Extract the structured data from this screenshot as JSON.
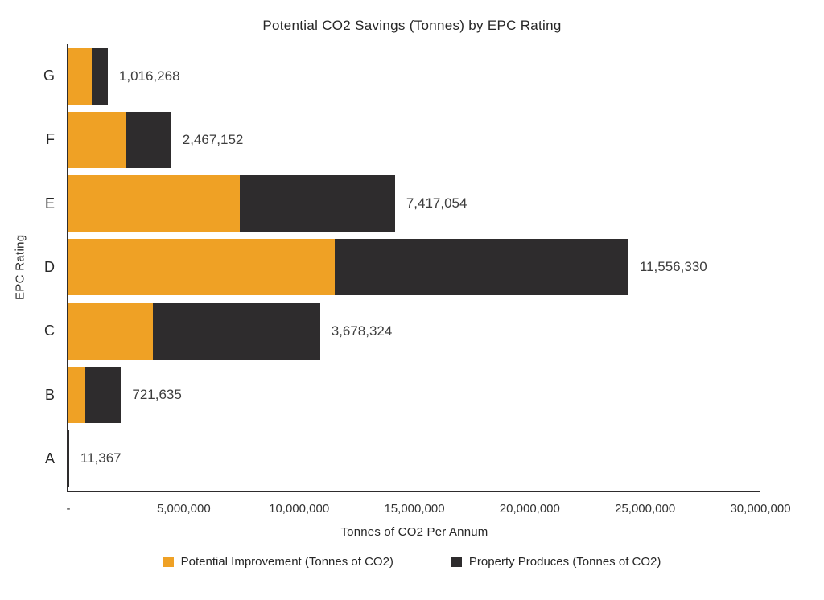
{
  "chart_data": {
    "type": "bar",
    "orientation": "horizontal",
    "stacked": true,
    "title": "Potential CO2 Savings (Tonnes) by EPC Rating",
    "xlabel": "Tonnes of CO2 Per Annum",
    "ylabel": "EPC Rating",
    "categories": [
      "G",
      "F",
      "E",
      "D",
      "C",
      "B",
      "A"
    ],
    "series": [
      {
        "name": "Potential Improvement (Tonnes of CO2)",
        "color": "#EFA125",
        "values": [
          1016268,
          2467152,
          7417054,
          11556330,
          3678324,
          721635,
          11367
        ]
      },
      {
        "name": "Property Produces (Tonnes of CO2)",
        "color": "#2E2C2D",
        "values": [
          690000,
          1990000,
          6740000,
          12720000,
          7230000,
          1560000,
          20000
        ]
      }
    ],
    "bar_labels": [
      "1,016,268",
      "2,467,152",
      "7,417,054",
      "11,556,330",
      "3,678,324",
      "721,635",
      "11,367"
    ],
    "xlim": [
      0,
      30000000
    ],
    "x_ticks": [
      "-",
      "5,000,000",
      "10,000,000",
      "15,000,000",
      "20,000,000",
      "25,000,000",
      "30,000,000"
    ],
    "grid": false,
    "legend_position": "bottom",
    "axis_color": "#2E2C2D",
    "background_color": "#FFFFFF"
  }
}
